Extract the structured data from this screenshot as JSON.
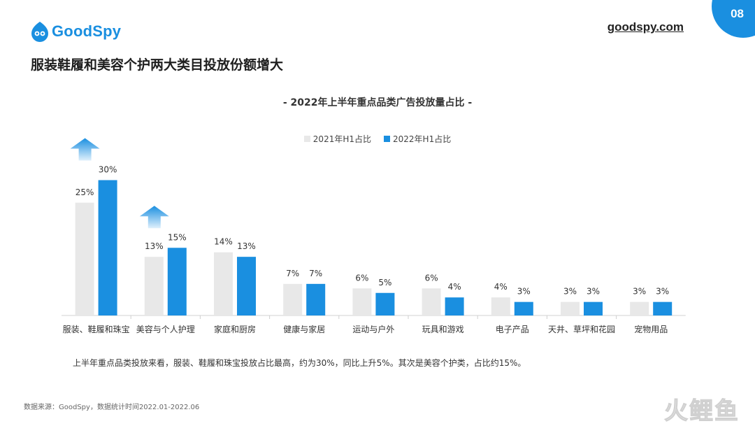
{
  "header": {
    "logo_text": "GoodSpy",
    "site": "goodspy.com",
    "page_number": "08",
    "headline": "服装鞋履和美容个护两大类目投放份额增大"
  },
  "colors": {
    "accent": "#1a8fe0",
    "series_2021": "#e8e8e8",
    "series_2022": "#1a8fe0"
  },
  "chart_data": {
    "type": "bar",
    "title": "- 2022年上半年重点品类广告投放量占比 -",
    "categories": [
      "服装、鞋履和珠宝",
      "美容与个人护理",
      "家庭和厨房",
      "健康与家居",
      "运动与户外",
      "玩具和游戏",
      "电子产品",
      "天井、草坪和花园",
      "宠物用品"
    ],
    "series": [
      {
        "name": "2021年H1占比",
        "values": [
          25,
          13,
          14,
          7,
          6,
          6,
          4,
          3,
          3
        ],
        "labels": [
          "25%",
          "13%",
          "14%",
          "7%",
          "6%",
          "6%",
          "4%",
          "3%",
          "3%"
        ]
      },
      {
        "name": "2022年H1占比",
        "values": [
          30,
          15,
          13,
          7,
          5,
          4,
          3,
          3,
          3
        ],
        "labels": [
          "30%",
          "15%",
          "13%",
          "7%",
          "5%",
          "4%",
          "3%",
          "3%",
          "3%"
        ]
      }
    ],
    "highlight_arrows": [
      "服装、鞋履和珠宝",
      "美容与个人护理"
    ],
    "ylim": [
      0,
      35
    ],
    "grid": false,
    "legend_position": "top-center"
  },
  "summary": "上半年重点品类投放来看，服装、鞋履和珠宝投放占比最高，约为30%，同比上升5%。其次是美容个护类，占比约15%。",
  "source": "数据来源：GoodSpy，数据统计时间2022.01-2022.06",
  "watermark": [
    "火",
    "鲤",
    "鱼"
  ]
}
